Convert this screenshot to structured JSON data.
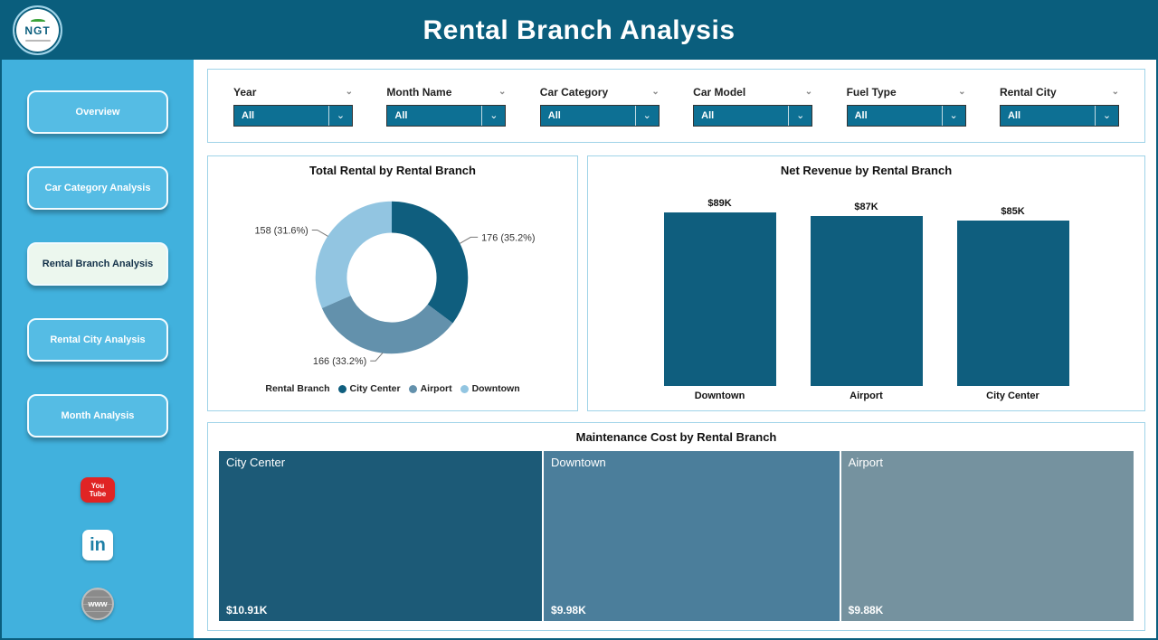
{
  "header": {
    "title": "Rental Branch Analysis",
    "logo": {
      "text": "NGT"
    }
  },
  "sidebar": {
    "items": [
      {
        "label": "Overview",
        "active": false
      },
      {
        "label": "Car Category Analysis",
        "active": false
      },
      {
        "label": "Rental Branch Analysis",
        "active": true
      },
      {
        "label": "Rental City Analysis",
        "active": false
      },
      {
        "label": "Month Analysis",
        "active": false
      }
    ],
    "social": {
      "youtube_line1": "You",
      "youtube_line2": "Tube",
      "linkedin": "in",
      "website": "www"
    }
  },
  "filters": [
    {
      "label": "Year",
      "value": "All"
    },
    {
      "label": "Month Name",
      "value": "All"
    },
    {
      "label": "Car Category",
      "value": "All"
    },
    {
      "label": "Car Model",
      "value": "All"
    },
    {
      "label": "Fuel Type",
      "value": "All"
    },
    {
      "label": "Rental City",
      "value": "All"
    }
  ],
  "chart_data": [
    {
      "type": "pie",
      "donut": true,
      "title": "Total Rental by Rental Branch",
      "legend_title": "Rental Branch",
      "legend_position": "bottom",
      "categories": [
        "City Center",
        "Airport",
        "Downtown"
      ],
      "values": [
        176,
        166,
        158
      ],
      "percents": [
        35.2,
        33.2,
        31.6
      ],
      "labels": [
        "176 (35.2%)",
        "166 (33.2%)",
        "158 (31.6%)"
      ],
      "colors": [
        "#0f5e7e",
        "#6391ac",
        "#92c5e1"
      ]
    },
    {
      "type": "bar",
      "title": "Net Revenue by Rental Branch",
      "categories": [
        "Downtown",
        "Airport",
        "City Center"
      ],
      "values": [
        89,
        87,
        85
      ],
      "value_labels": [
        "$89K",
        "$87K",
        "$85K"
      ],
      "bar_color": "#0f5e7e",
      "ylim": [
        0,
        89
      ]
    },
    {
      "type": "treemap",
      "title": "Maintenance Cost by Rental Branch",
      "categories": [
        "City Center",
        "Downtown",
        "Airport"
      ],
      "values": [
        10.91,
        9.98,
        9.88
      ],
      "value_labels": [
        "$10.91K",
        "$9.98K",
        "$9.88K"
      ],
      "colors": [
        "#1c5a77",
        "#4b7e9b",
        "#75929f"
      ]
    }
  ],
  "theme": {
    "header_bg": "#0a5e7d",
    "sidebar_bg": "#41b1dd",
    "accent_dark": "#0f5e7e",
    "card_border": "#9fd3e8",
    "dropdown_bg": "#0d7094"
  }
}
